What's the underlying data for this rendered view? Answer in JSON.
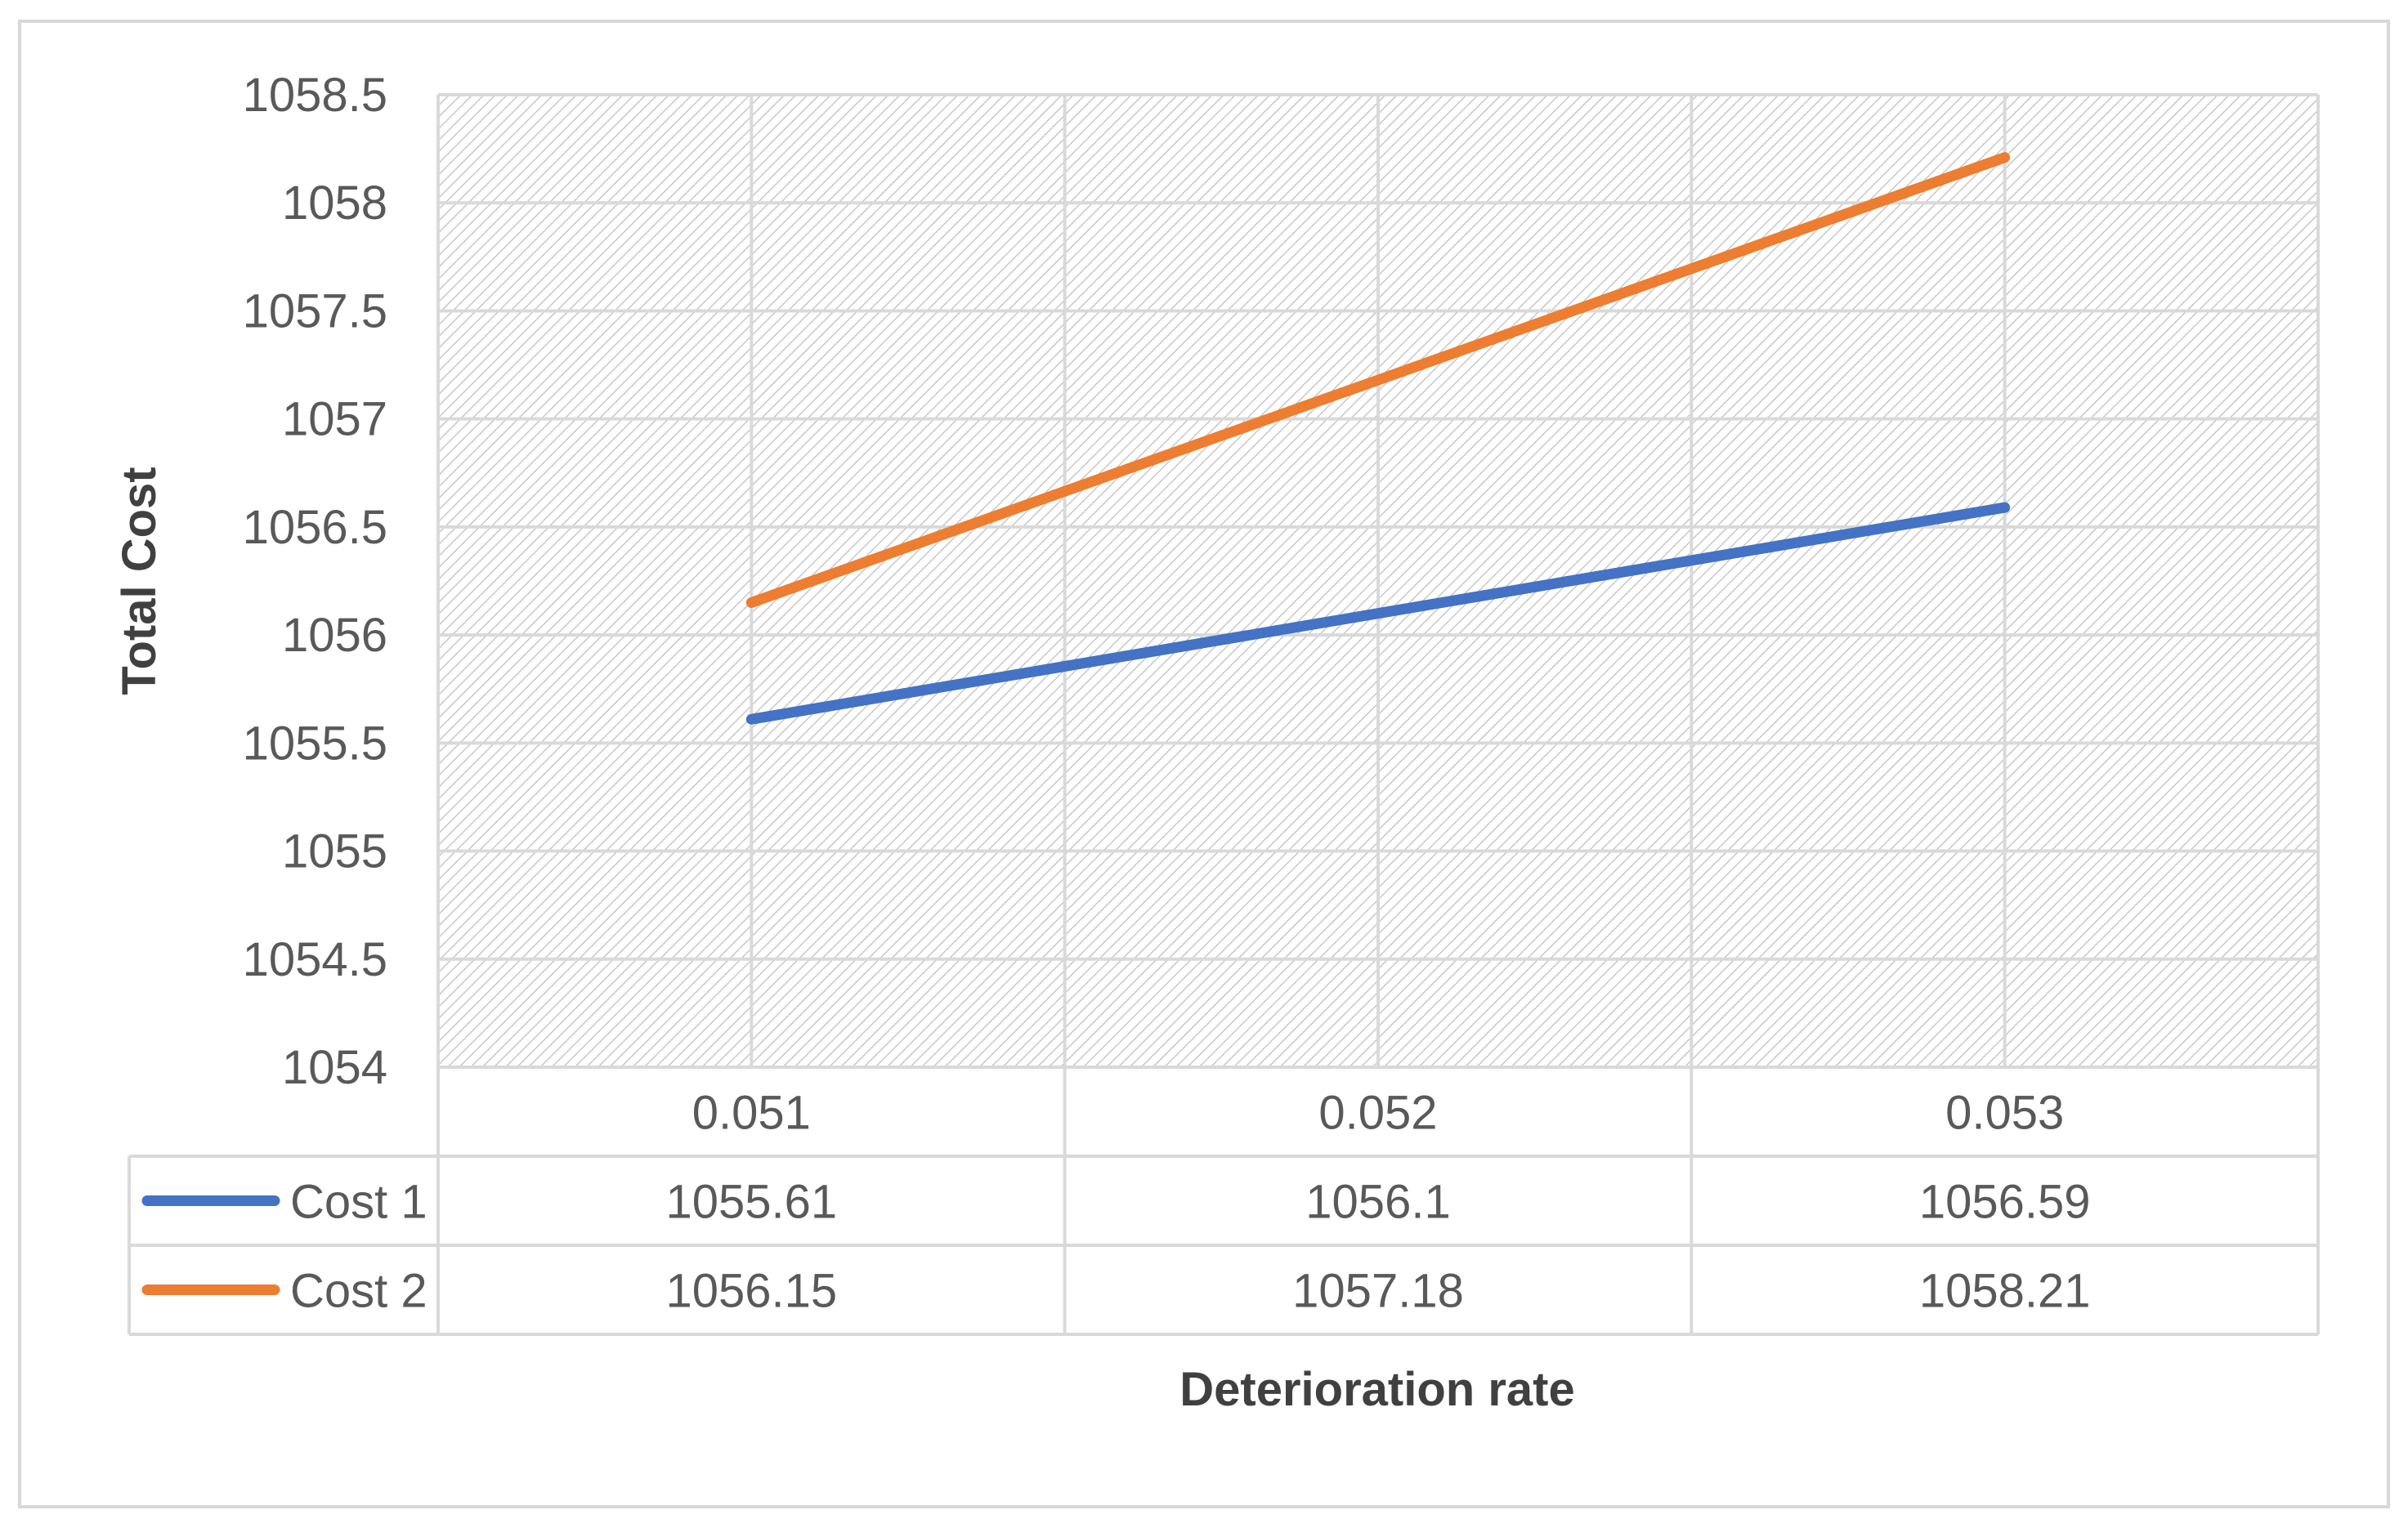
{
  "chart_data": {
    "type": "line",
    "title": "",
    "xlabel": "Deterioration rate",
    "ylabel": "Total Cost",
    "categories": [
      "0.051",
      "0.052",
      "0.053"
    ],
    "ylim": [
      1054,
      1058.5
    ],
    "yticks": [
      "1058.5",
      "1058",
      "1057.5",
      "1057",
      "1056.5",
      "1056",
      "1055.5",
      "1055",
      "1054.5",
      "1054"
    ],
    "series": [
      {
        "name": "Cost 1",
        "values": [
          1055.61,
          1056.1,
          1056.59
        ],
        "labels": [
          "1055.61",
          "1056.1",
          "1056.59"
        ],
        "color": "#4472C4"
      },
      {
        "name": "Cost 2",
        "values": [
          1056.15,
          1057.18,
          1058.21
        ],
        "labels": [
          "1056.15",
          "1057.18",
          "1058.21"
        ],
        "color": "#ED7D31"
      }
    ],
    "grid": true,
    "legend": "data-table"
  }
}
